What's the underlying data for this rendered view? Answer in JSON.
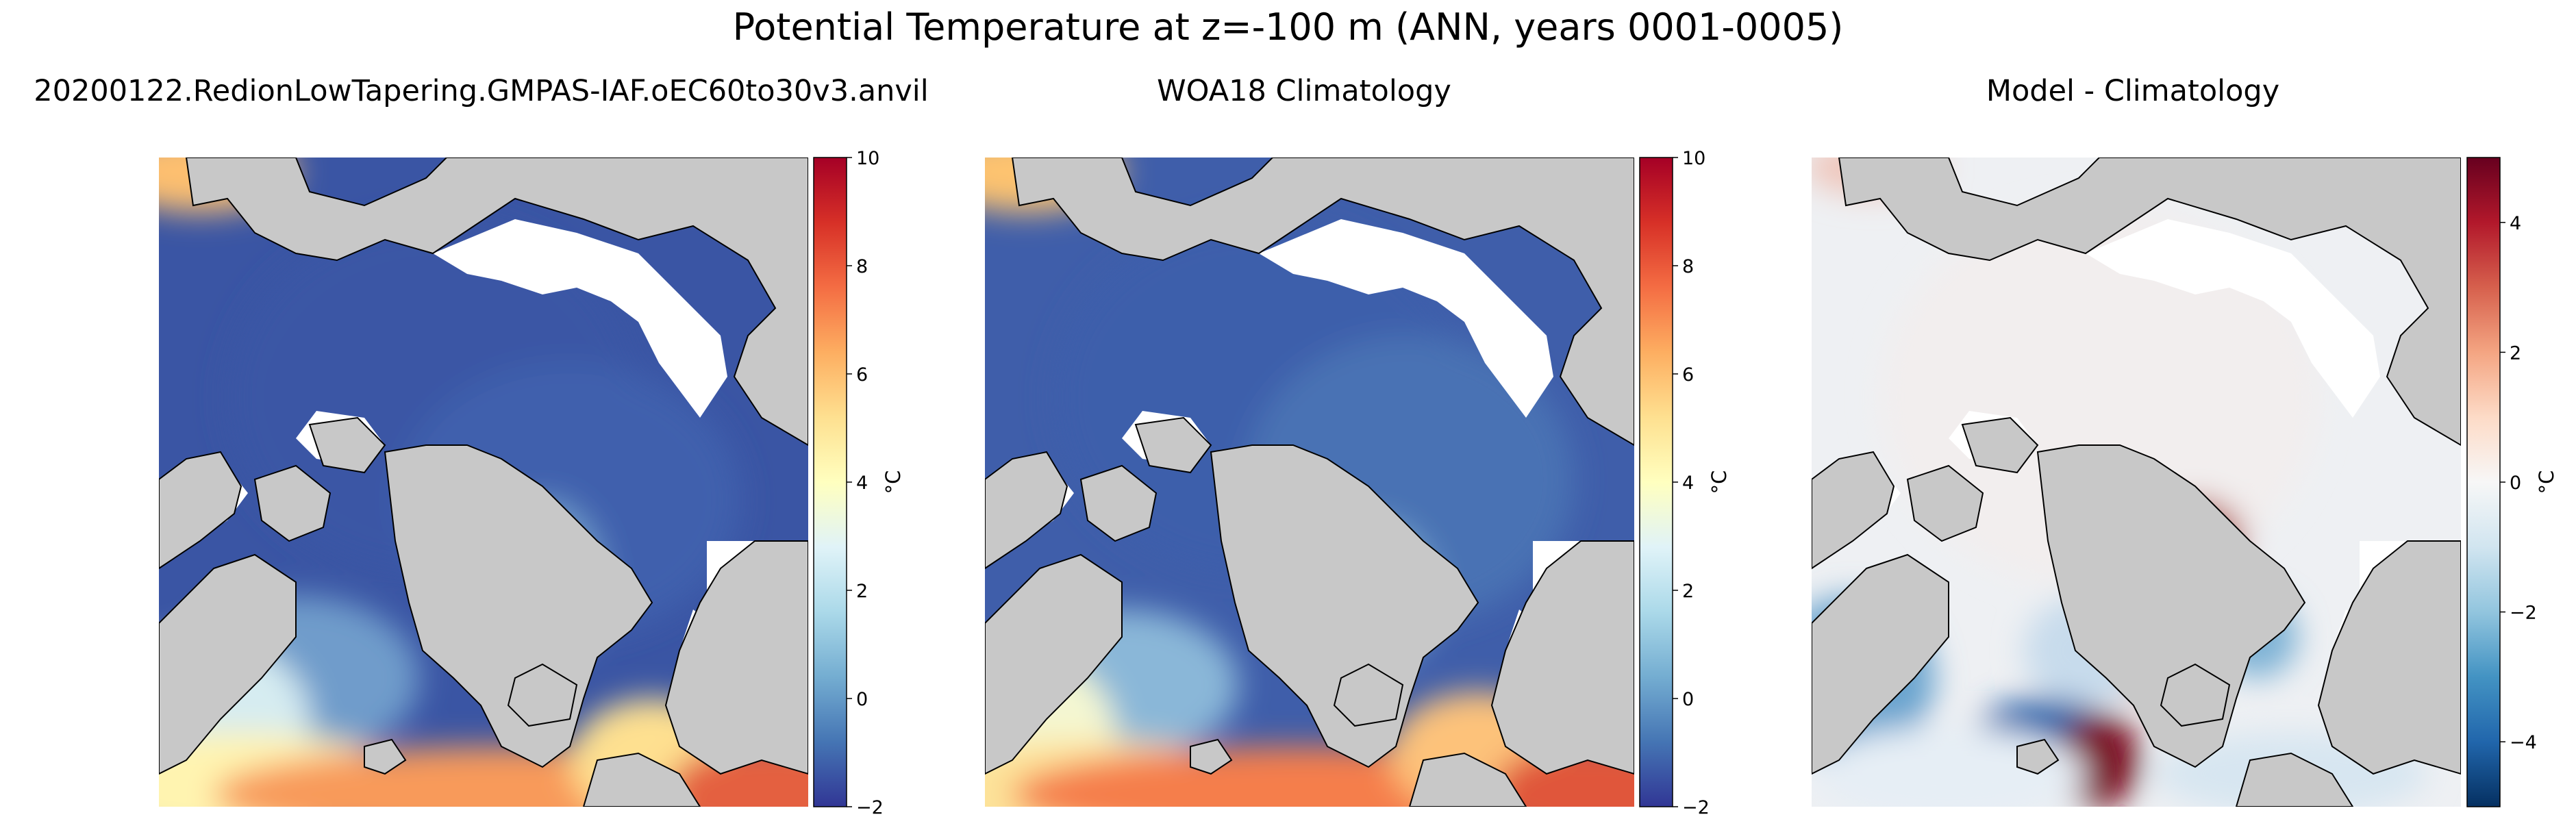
{
  "figure": {
    "title": "Potential Temperature at z=-100 m (ANN, years 0001-0005)"
  },
  "panels": [
    {
      "title": "20200122.RedionLowTapering.GMPAS-IAF.oEC60to30v3.anvil",
      "colormap": "RdYlBu_r",
      "colorbar": {
        "label": "°C",
        "min": -2,
        "max": 10,
        "ticks": [
          "−2",
          "0",
          "2",
          "4",
          "6",
          "8",
          "10"
        ]
      }
    },
    {
      "title": "WOA18 Climatology",
      "colormap": "RdYlBu_r",
      "colorbar": {
        "label": "°C",
        "min": -2,
        "max": 10,
        "ticks": [
          "−2",
          "0",
          "2",
          "4",
          "6",
          "8",
          "10"
        ]
      }
    },
    {
      "title": "Model - Climatology",
      "colormap": "RdBu_r",
      "colorbar": {
        "label": "°C",
        "min": -5,
        "max": 5,
        "ticks": [
          "−4",
          "−2",
          "0",
          "2",
          "4"
        ]
      }
    }
  ],
  "colors": {
    "land": "#c8c8c8",
    "sea_ice_mask": "#ffffff",
    "coastline": "#000000"
  }
}
